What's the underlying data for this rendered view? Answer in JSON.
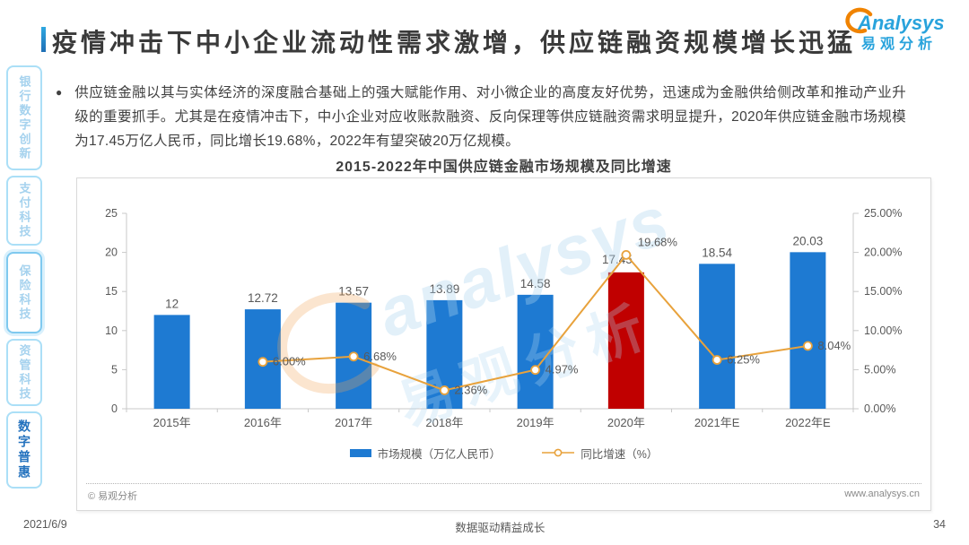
{
  "page": {
    "title": "疫情冲击下中小企业流动性需求激增，供应链融资规模增长迅猛",
    "date": "2021/6/9",
    "slogan": "数据驱动精益成长",
    "page_number": "34"
  },
  "logo": {
    "brand": "Analysys",
    "brand_cn": "易观分析"
  },
  "sidebar": {
    "items": [
      {
        "label": "银行数字创新",
        "active": false
      },
      {
        "label": "支付科技",
        "active": false
      },
      {
        "label": "保险科技",
        "active": false
      },
      {
        "label": "资管科技",
        "active": false
      },
      {
        "label": "数字普惠",
        "active": true
      }
    ]
  },
  "body": {
    "bullet_glyph": "●",
    "bullet_text": "供应链金融以其与实体经济的深度融合基础上的强大赋能作用、对小微企业的高度友好优势，迅速成为金融供给侧改革和推动产业升级的重要抓手。尤其是在疫情冲击下，中小企业对应收账款融资、反向保理等供应链融资需求明显提升，2020年供应链金融市场规模为17.45万亿人民币，同比增长19.68%，2022年有望突破20万亿规模。"
  },
  "chart": {
    "title": "2015-2022年中国供应链金融市场规模及同比增速",
    "source_left": "© 易观分析",
    "source_right": "www.analysys.cn",
    "watermark_brand": "analysys",
    "watermark_cn": "易观分析"
  },
  "chart_data": {
    "type": "bar+line",
    "title": "2015-2022年中国供应链金融市场规模及同比增速",
    "categories": [
      "2015年",
      "2016年",
      "2017年",
      "2018年",
      "2019年",
      "2020年",
      "2021年E",
      "2022年E"
    ],
    "series": [
      {
        "name": "市场规模（万亿人民币）",
        "type": "bar",
        "values": [
          12,
          12.72,
          13.57,
          13.89,
          14.58,
          17.45,
          18.54,
          20.03
        ],
        "labels": [
          "12",
          "12.72",
          "13.57",
          "13.89",
          "14.58",
          "17.45",
          "18.54",
          "20.03"
        ]
      },
      {
        "name": "同比增速（%）",
        "type": "line",
        "values": [
          null,
          6.0,
          6.68,
          2.36,
          4.97,
          19.68,
          6.25,
          8.04
        ],
        "labels": [
          null,
          "6.00%",
          "6.68%",
          "2.36%",
          "4.97%",
          "19.68%",
          "6.25%",
          "8.04%"
        ]
      }
    ],
    "highlight_index": 5,
    "left_axis": {
      "min": 0,
      "max": 25,
      "ticks": [
        "0",
        "5",
        "10",
        "15",
        "20",
        "25"
      ]
    },
    "right_axis": {
      "min": 0,
      "max": 25,
      "ticks": [
        "0.00%",
        "5.00%",
        "10.00%",
        "15.00%",
        "20.00%",
        "25.00%"
      ]
    },
    "legend_position": "bottom",
    "grid": false,
    "colors": {
      "bar": "#1E7AD2",
      "bar_highlight": "#C00000",
      "line": "#E8A23C",
      "axis_text": "#595959"
    }
  }
}
